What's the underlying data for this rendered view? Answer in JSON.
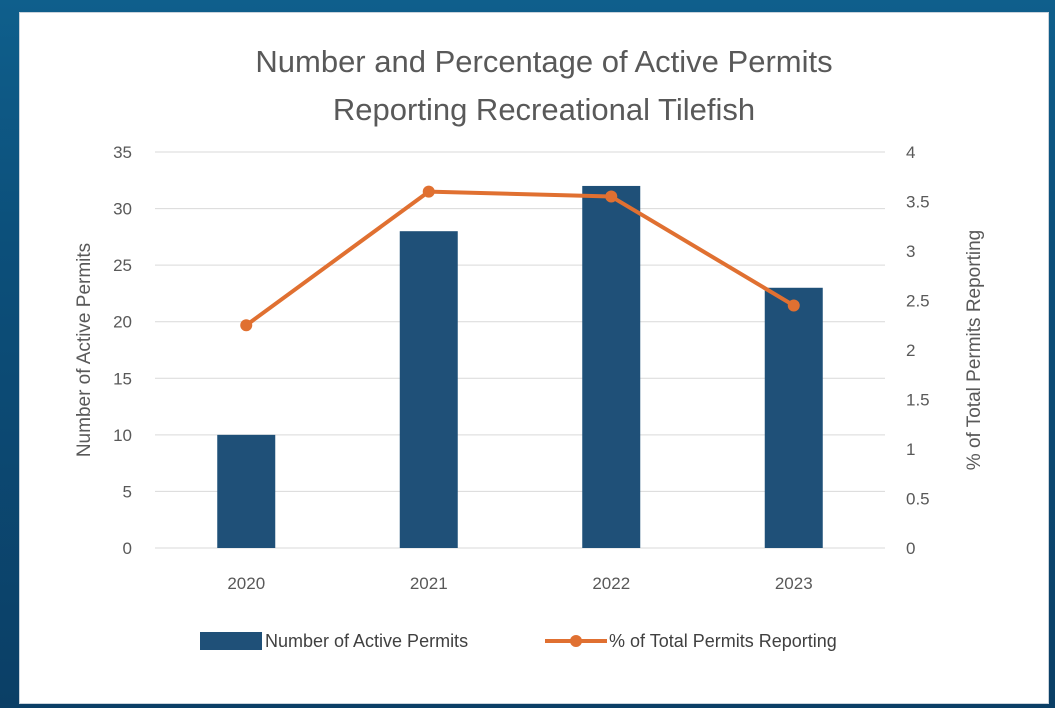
{
  "colors": {
    "bar": "#1f5078",
    "line": "#e07031",
    "grid": "#d9d9d9",
    "text": "#595959"
  },
  "chart_data": {
    "type": "bar",
    "title": "Number and Percentage of Active Permits Reporting Recreational Tilefish",
    "title_lines": [
      "Number and Percentage of Active Permits",
      "Reporting Recreational Tilefish"
    ],
    "categories": [
      "2020",
      "2021",
      "2022",
      "2023"
    ],
    "series": [
      {
        "name": "Number of Active Permits",
        "type": "bar",
        "axis": "left",
        "values": [
          10,
          28,
          32,
          23
        ]
      },
      {
        "name": "% of Total Permits Reporting",
        "type": "line",
        "axis": "right",
        "values": [
          2.25,
          3.6,
          3.55,
          2.45
        ]
      }
    ],
    "ylabel": "Number of Active Permits",
    "y2label": "% of Total Permits Reporting",
    "ylim": [
      0,
      35
    ],
    "y2lim": [
      0,
      4
    ],
    "yticks": [
      "0",
      "5",
      "10",
      "15",
      "20",
      "25",
      "30",
      "35"
    ],
    "y2ticks": [
      "0",
      "0.5",
      "1",
      "1.5",
      "2",
      "2.5",
      "3",
      "3.5",
      "4"
    ],
    "grid": true,
    "legend_position": "bottom"
  }
}
